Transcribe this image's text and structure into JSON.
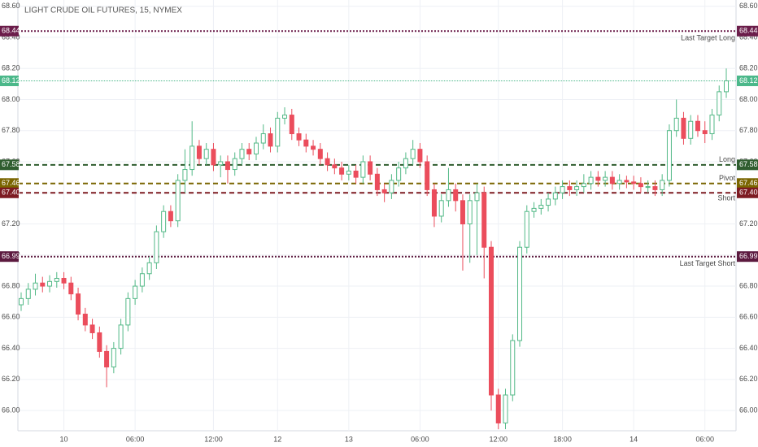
{
  "chart_data": {
    "type": "candlestick",
    "title": "LIGHT CRUDE OIL FUTURES, 15, NYMEX",
    "categories": [
      null,
      null,
      null,
      null,
      null,
      null,
      "10",
      null,
      null,
      null,
      null,
      null,
      null,
      null,
      null,
      null,
      "06:00",
      null,
      null,
      null,
      null,
      null,
      null,
      null,
      null,
      null,
      null,
      "12:00",
      null,
      null,
      null,
      null,
      null,
      null,
      null,
      null,
      "12",
      null,
      null,
      null,
      null,
      null,
      null,
      null,
      null,
      null,
      "13",
      null,
      null,
      null,
      null,
      null,
      null,
      null,
      null,
      null,
      "06:00",
      null,
      null,
      null,
      null,
      null,
      null,
      null,
      null,
      null,
      null,
      "12:00",
      null,
      null,
      null,
      null,
      null,
      null,
      null,
      null,
      "18:00",
      null,
      null,
      null,
      null,
      null,
      null,
      null,
      null,
      null,
      "14",
      null,
      null,
      null,
      null,
      null,
      null,
      null,
      null,
      null,
      "06:00",
      null,
      null,
      null
    ],
    "open": [
      66.68,
      66.72,
      66.78,
      66.82,
      66.8,
      66.83,
      66.85,
      66.82,
      66.75,
      66.62,
      66.55,
      66.5,
      66.38,
      66.28,
      66.4,
      66.55,
      66.72,
      66.8,
      66.88,
      66.95,
      67.15,
      67.28,
      67.22,
      67.48,
      67.55,
      67.7,
      67.62,
      67.68,
      67.58,
      67.6,
      67.55,
      67.62,
      67.68,
      67.65,
      67.72,
      67.78,
      67.7,
      67.88,
      67.9,
      67.78,
      67.74,
      67.7,
      67.68,
      67.62,
      67.58,
      67.56,
      67.52,
      67.54,
      67.5,
      67.6,
      67.52,
      67.42,
      67.4,
      67.48,
      67.56,
      67.62,
      67.68,
      67.6,
      67.42,
      67.25,
      67.35,
      67.42,
      67.35,
      67.2,
      67.35,
      67.4,
      67.05,
      66.1,
      65.92,
      66.1,
      66.45,
      67.05,
      67.28,
      67.3,
      67.32,
      67.36,
      67.4,
      67.44,
      67.42,
      67.44,
      67.46,
      67.5,
      67.48,
      67.5,
      67.46,
      67.48,
      67.47,
      67.46,
      67.44,
      67.44,
      67.42,
      67.48,
      67.8,
      67.88,
      67.75,
      67.86,
      67.8,
      67.78,
      67.9,
      68.05
    ],
    "high": [
      66.76,
      66.82,
      66.88,
      66.86,
      66.87,
      66.89,
      66.89,
      66.86,
      66.79,
      66.66,
      66.59,
      66.54,
      66.42,
      66.44,
      66.59,
      66.76,
      66.84,
      66.92,
      66.99,
      67.19,
      67.32,
      67.32,
      67.52,
      67.68,
      67.86,
      67.74,
      67.72,
      67.72,
      67.64,
      67.64,
      67.66,
      67.72,
      67.72,
      67.76,
      67.84,
      67.82,
      67.92,
      67.95,
      67.94,
      67.82,
      67.78,
      67.74,
      67.72,
      67.66,
      67.62,
      67.6,
      67.58,
      67.58,
      67.64,
      67.64,
      67.56,
      67.46,
      67.52,
      67.6,
      67.66,
      67.74,
      67.72,
      67.64,
      67.46,
      67.39,
      67.56,
      67.46,
      67.39,
      67.39,
      67.46,
      67.44,
      67.09,
      66.14,
      66.14,
      66.49,
      67.09,
      67.32,
      67.34,
      67.36,
      67.4,
      67.44,
      67.48,
      67.48,
      67.48,
      67.52,
      67.54,
      67.54,
      67.54,
      67.54,
      67.52,
      67.51,
      67.51,
      67.5,
      67.48,
      67.48,
      67.52,
      67.84,
      68.0,
      67.92,
      67.9,
      67.9,
      67.86,
      67.94,
      68.09,
      68.2
    ],
    "low": [
      66.64,
      66.68,
      66.74,
      66.76,
      66.76,
      66.79,
      66.78,
      66.71,
      66.58,
      66.51,
      66.46,
      66.34,
      66.15,
      66.24,
      66.36,
      66.51,
      66.68,
      66.76,
      66.84,
      66.91,
      67.11,
      67.18,
      67.18,
      67.4,
      67.51,
      67.58,
      67.58,
      67.54,
      67.5,
      67.46,
      67.51,
      67.58,
      67.61,
      67.61,
      67.68,
      67.66,
      67.66,
      67.84,
      67.74,
      67.7,
      67.66,
      67.64,
      67.58,
      67.54,
      67.52,
      67.48,
      67.48,
      67.46,
      67.46,
      67.48,
      67.38,
      67.34,
      67.36,
      67.44,
      67.52,
      67.58,
      67.56,
      67.38,
      67.18,
      67.21,
      67.31,
      67.28,
      66.9,
      66.95,
      67.0,
      66.85,
      66.0,
      65.88,
      65.88,
      66.06,
      66.41,
      67.01,
      67.24,
      67.26,
      67.28,
      67.32,
      67.36,
      67.38,
      67.38,
      67.4,
      67.42,
      67.44,
      67.44,
      67.42,
      67.42,
      67.43,
      67.42,
      67.4,
      67.4,
      67.38,
      67.38,
      67.44,
      67.76,
      67.71,
      67.71,
      67.76,
      67.72,
      67.74,
      67.86,
      68.01
    ],
    "close": [
      66.72,
      66.78,
      66.82,
      66.8,
      66.83,
      66.85,
      66.82,
      66.75,
      66.62,
      66.55,
      66.5,
      66.38,
      66.28,
      66.4,
      66.55,
      66.72,
      66.8,
      66.88,
      66.95,
      67.15,
      67.28,
      67.22,
      67.48,
      67.55,
      67.7,
      67.62,
      67.68,
      67.58,
      67.6,
      67.55,
      67.62,
      67.68,
      67.65,
      67.72,
      67.78,
      67.7,
      67.88,
      67.9,
      67.78,
      67.74,
      67.7,
      67.68,
      67.62,
      67.58,
      67.56,
      67.52,
      67.54,
      67.5,
      67.6,
      67.52,
      67.42,
      67.4,
      67.48,
      67.56,
      67.62,
      67.68,
      67.6,
      67.42,
      67.25,
      67.35,
      67.42,
      67.35,
      67.2,
      67.35,
      67.4,
      67.05,
      66.1,
      65.92,
      66.1,
      66.45,
      67.05,
      67.28,
      67.3,
      67.32,
      67.36,
      67.4,
      67.44,
      67.42,
      67.44,
      67.46,
      67.5,
      67.48,
      67.5,
      67.46,
      67.48,
      67.47,
      67.46,
      67.44,
      67.44,
      67.42,
      67.48,
      67.8,
      67.88,
      67.75,
      67.86,
      67.8,
      67.78,
      67.9,
      68.05,
      68.12
    ],
    "up_color": "#53b987",
    "down_color": "#eb4d5c",
    "ylim": [
      65.87,
      68.64
    ],
    "yticks": [
      {
        "value": 68.6,
        "label": "68.60"
      },
      {
        "value": 68.4,
        "label": "68.40"
      },
      {
        "value": 68.2,
        "label": "68.20"
      },
      {
        "value": 68.0,
        "label": "68.00"
      },
      {
        "value": 67.8,
        "label": "67.80"
      },
      {
        "value": 67.6,
        "label": "67.60"
      },
      {
        "value": 67.4,
        "label": "67.40"
      },
      {
        "value": 67.2,
        "label": "67.20"
      },
      {
        "value": 67.0,
        "label": "67.00"
      },
      {
        "value": 66.8,
        "label": "66.80"
      },
      {
        "value": 66.6,
        "label": "66.60"
      },
      {
        "value": 66.4,
        "label": "66.40"
      },
      {
        "value": 66.2,
        "label": "66.20"
      },
      {
        "value": 66.0,
        "label": "66.00"
      }
    ],
    "grid": true,
    "last_price": {
      "value": 68.12,
      "color": "#4bb88a"
    },
    "levels": [
      {
        "name": "Last Target Long",
        "value": 68.44,
        "color": "#6b1d4a",
        "style": "dotted"
      },
      {
        "name": "Long",
        "value": 67.58,
        "color": "#2f5d2f",
        "style": "dashed"
      },
      {
        "name": "Pivot",
        "value": 67.46,
        "color": "#7a6500",
        "style": "dashed"
      },
      {
        "name": "Short",
        "value": {
          "value": 67.4,
          "label": "67.40"
        },
        "color": "#7d1b22",
        "style": "dashed"
      },
      {
        "name": "Last Target Short",
        "value": 66.99,
        "color": "#5c1a3f",
        "style": "dotted"
      }
    ]
  }
}
